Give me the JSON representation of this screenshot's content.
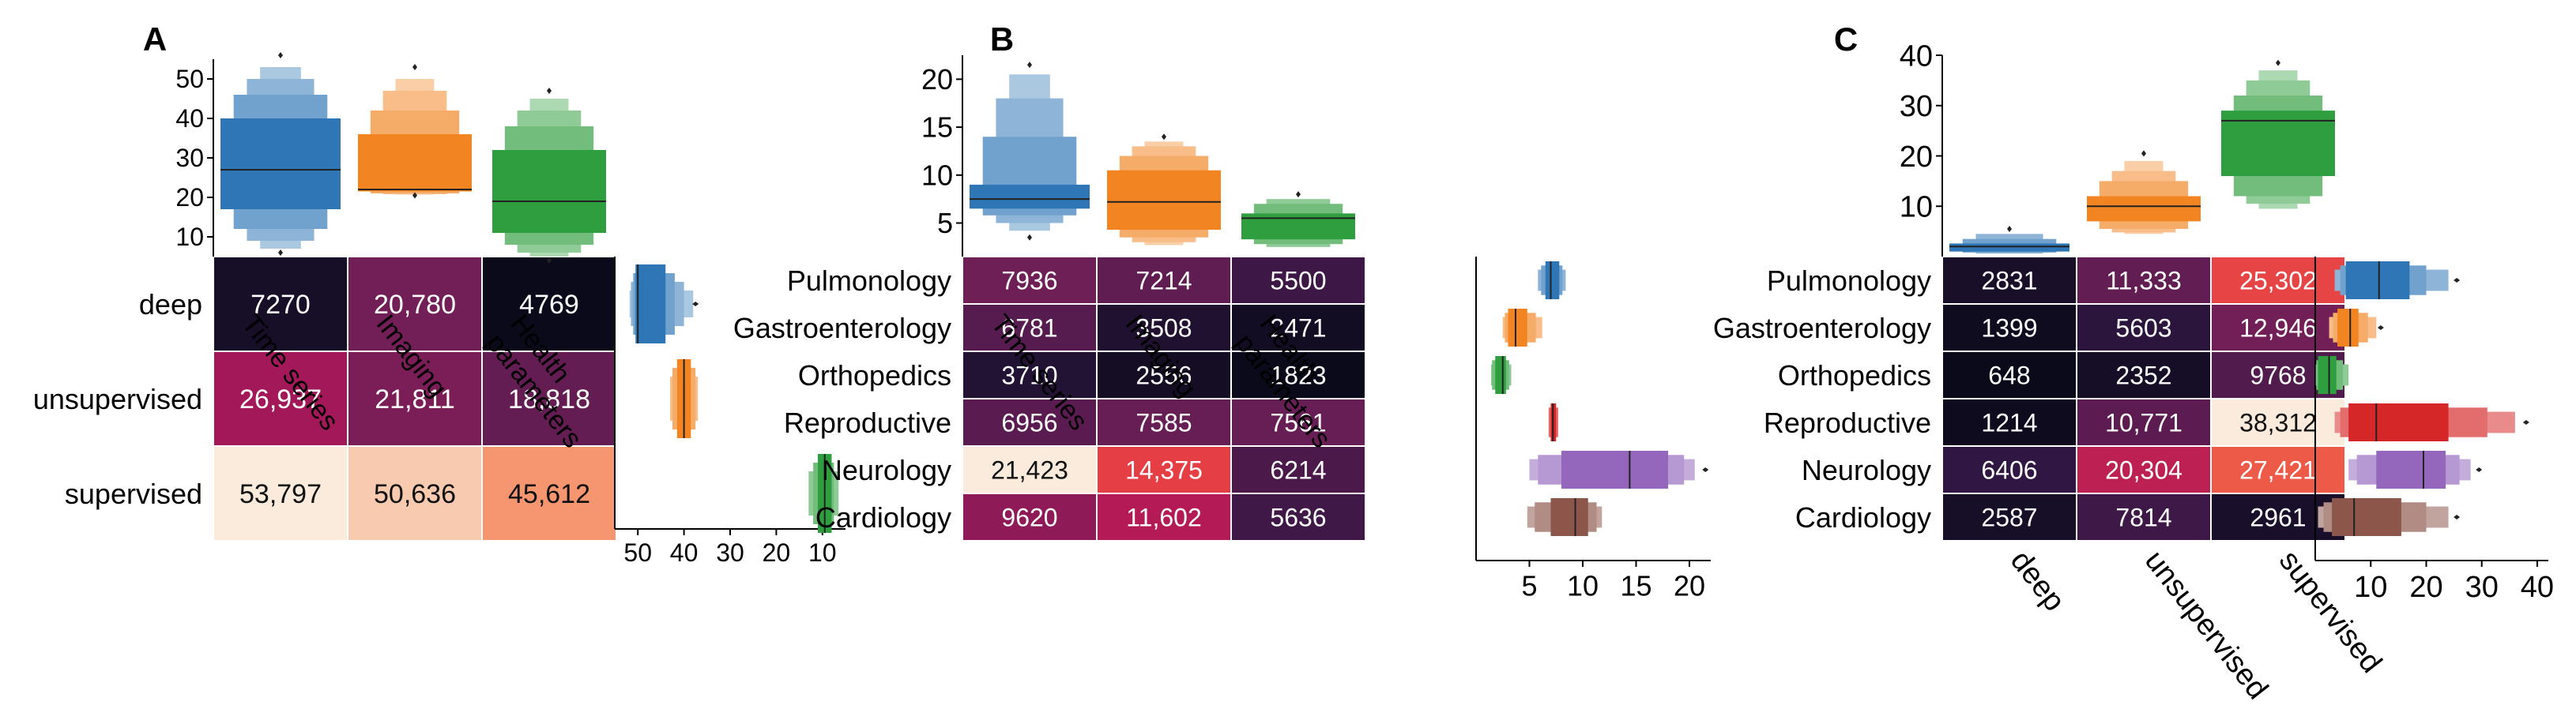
{
  "figure": {
    "panel_labels": [
      "A",
      "B",
      "C"
    ]
  },
  "chart_data": [
    {
      "type": "heatmap",
      "panel": "A",
      "rows": [
        "deep",
        "unsupervised",
        "supervised"
      ],
      "cols": [
        "Time series",
        "Imaging",
        "Health parameters"
      ],
      "values": [
        [
          7270,
          20780,
          4769
        ],
        [
          26937,
          21811,
          18818
        ],
        [
          53797,
          50636,
          45612
        ]
      ],
      "labels": [
        [
          "7270",
          "20,780",
          "4769"
        ],
        [
          "26,937",
          "21,811",
          "18,818"
        ],
        [
          "53,797",
          "50,636",
          "45,612"
        ]
      ],
      "top_boxen": {
        "axis_range": [
          5,
          55
        ],
        "ticks": [
          10,
          20,
          30,
          40,
          50
        ],
        "series": [
          {
            "name": "Time series",
            "color": "#2e76b5",
            "median": 27,
            "levels": [
              [
                17,
                40
              ],
              [
                12,
                46
              ],
              [
                9,
                50
              ],
              [
                7,
                53
              ]
            ],
            "outliers": [
              6,
              56
            ]
          },
          {
            "name": "Imaging",
            "color": "#f28522",
            "median": 22,
            "levels": [
              [
                21.5,
                36
              ],
              [
                21,
                42
              ],
              [
                20.8,
                47
              ],
              [
                20.7,
                50
              ]
            ],
            "outliers": [
              20.5,
              53
            ]
          },
          {
            "name": "Health parameters",
            "color": "#2f9e3f",
            "median": 19,
            "levels": [
              [
                11,
                32
              ],
              [
                8,
                38
              ],
              [
                6,
                42
              ],
              [
                5,
                45
              ]
            ],
            "outliers": [
              4,
              47
            ]
          }
        ]
      },
      "side_boxen": {
        "axis_range": [
          55,
          5
        ],
        "ticks": [
          50,
          40,
          30,
          20,
          10
        ],
        "series": [
          {
            "name": "deep",
            "color": "#2e76b5",
            "median": 50,
            "levels": [
              [
                44,
                50.5
              ],
              [
                42,
                51
              ],
              [
                40,
                51.5
              ],
              [
                38,
                51.8
              ]
            ],
            "outliers": [
              37.5
            ]
          },
          {
            "name": "unsupervised",
            "color": "#f28522",
            "median": 40,
            "levels": [
              [
                38.5,
                41.5
              ],
              [
                37.5,
                42.5
              ],
              [
                37,
                43
              ]
            ],
            "outliers": []
          },
          {
            "name": "supervised",
            "color": "#2f9e3f",
            "median": 9.5,
            "levels": [
              [
                8,
                11
              ],
              [
                7.5,
                12
              ],
              [
                6.5,
                13
              ]
            ],
            "outliers": []
          }
        ]
      }
    },
    {
      "type": "heatmap",
      "panel": "B",
      "rows": [
        "Pulmonology",
        "Gastroenterology",
        "Orthopedics",
        "Reproductive",
        "Neurology",
        "Cardiology"
      ],
      "cols": [
        "Time series",
        "Imaging",
        "Health parameters"
      ],
      "values": [
        [
          7936,
          7214,
          5500
        ],
        [
          6781,
          3508,
          2471
        ],
        [
          3710,
          2556,
          1823
        ],
        [
          6956,
          7585,
          7561
        ],
        [
          21423,
          14375,
          6214
        ],
        [
          9620,
          11602,
          5636
        ]
      ],
      "labels": [
        [
          "7936",
          "7214",
          "5500"
        ],
        [
          "6781",
          "3508",
          "2471"
        ],
        [
          "3710",
          "2556",
          "1823"
        ],
        [
          "6956",
          "7585",
          "7561"
        ],
        [
          "21,423",
          "14,375",
          "6214"
        ],
        [
          "9620",
          "11,602",
          "5636"
        ]
      ],
      "top_boxen": {
        "axis_range": [
          1.5,
          22.5
        ],
        "ticks": [
          5,
          10,
          15,
          20
        ],
        "series": [
          {
            "name": "Time series",
            "color": "#2e76b5",
            "median": 7.5,
            "levels": [
              [
                6.5,
                9
              ],
              [
                5.8,
                14
              ],
              [
                5,
                18
              ],
              [
                4.2,
                20.5
              ]
            ],
            "outliers": [
              3.5,
              21.5
            ]
          },
          {
            "name": "Imaging",
            "color": "#f28522",
            "median": 7.2,
            "levels": [
              [
                4.3,
                10.5
              ],
              [
                3.5,
                12
              ],
              [
                3,
                13
              ],
              [
                2.7,
                13.5
              ]
            ],
            "outliers": [
              14
            ]
          },
          {
            "name": "Health parameters",
            "color": "#2f9e3f",
            "median": 5.5,
            "levels": [
              [
                3.3,
                6
              ],
              [
                2.8,
                7
              ],
              [
                2.5,
                7.5
              ]
            ],
            "outliers": [
              8
            ]
          }
        ]
      },
      "side_boxen": {
        "axis_range": [
          0,
          22
        ],
        "ticks": [
          5,
          10,
          15,
          20
        ],
        "series": [
          {
            "name": "Pulmonology",
            "color": "#2e76b5",
            "median": 7,
            "levels": [
              [
                6.5,
                7.8
              ],
              [
                6.1,
                8.1
              ],
              [
                5.8,
                8.4
              ]
            ],
            "outliers": []
          },
          {
            "name": "Gastroenterology",
            "color": "#f28522",
            "median": 3.7,
            "levels": [
              [
                3,
                4.8
              ],
              [
                2.7,
                5.6
              ],
              [
                2.5,
                6.2
              ]
            ],
            "outliers": []
          },
          {
            "name": "Orthopedics",
            "color": "#2f9e3f",
            "median": 2.5,
            "levels": [
              [
                1.8,
                2.8
              ],
              [
                1.5,
                3.1
              ],
              [
                1.4,
                3.3
              ]
            ],
            "outliers": []
          },
          {
            "name": "Reproductive",
            "color": "#d62728",
            "median": 7.2,
            "levels": [
              [
                7,
                7.5
              ],
              [
                6.8,
                7.7
              ]
            ],
            "outliers": []
          },
          {
            "name": "Neurology",
            "color": "#9467bd",
            "median": 14.4,
            "levels": [
              [
                8,
                18
              ],
              [
                5.8,
                19.5
              ],
              [
                5,
                20.5
              ]
            ],
            "outliers": [
              21.5
            ]
          },
          {
            "name": "Cardiology",
            "color": "#8c564b",
            "median": 9.3,
            "levels": [
              [
                7,
                10.5
              ],
              [
                5.5,
                11.3
              ],
              [
                4.8,
                11.8
              ]
            ],
            "outliers": []
          }
        ]
      }
    },
    {
      "type": "heatmap",
      "panel": "C",
      "rows": [
        "Pulmonology",
        "Gastroenterology",
        "Orthopedics",
        "Reproductive",
        "Neurology",
        "Cardiology"
      ],
      "cols": [
        "deep",
        "unsupervised",
        "supervised"
      ],
      "values": [
        [
          2831,
          11333,
          25302
        ],
        [
          1399,
          5603,
          12946
        ],
        [
          648,
          2352,
          9768
        ],
        [
          1214,
          10771,
          38312
        ],
        [
          6406,
          20304,
          27421
        ],
        [
          2587,
          7814,
          2961
        ]
      ],
      "labels": [
        [
          "2831",
          "11,333",
          "25,302"
        ],
        [
          "1399",
          "5603",
          "12,946"
        ],
        [
          "648",
          "2352",
          "9768"
        ],
        [
          "1214",
          "10,771",
          "38,312"
        ],
        [
          "6406",
          "20,304",
          "27,421"
        ],
        [
          "2587",
          "7814",
          "2961"
        ]
      ],
      "top_boxen": {
        "axis_range": [
          0,
          40
        ],
        "ticks": [
          10,
          20,
          30,
          40
        ],
        "series": [
          {
            "name": "deep",
            "color": "#2e76b5",
            "median": 2,
            "levels": [
              [
                1,
                2.6
              ],
              [
                0.8,
                3.5
              ],
              [
                0.6,
                4.5
              ]
            ],
            "outliers": [
              5.5
            ]
          },
          {
            "name": "unsupervised",
            "color": "#f28522",
            "median": 10,
            "levels": [
              [
                7,
                12
              ],
              [
                5.5,
                15
              ],
              [
                4.8,
                17
              ],
              [
                4.5,
                19
              ]
            ],
            "outliers": [
              20.5
            ]
          },
          {
            "name": "supervised",
            "color": "#2f9e3f",
            "median": 27,
            "levels": [
              [
                16,
                29
              ],
              [
                12,
                32
              ],
              [
                10.5,
                35
              ],
              [
                9.5,
                37
              ]
            ],
            "outliers": [
              38.5
            ]
          }
        ]
      },
      "side_boxen": {
        "axis_range": [
          0,
          42
        ],
        "ticks": [
          10,
          20,
          30,
          40
        ],
        "series": [
          {
            "name": "Pulmonology",
            "color": "#2e76b5",
            "median": 11.5,
            "levels": [
              [
                5.5,
                17
              ],
              [
                4.5,
                20
              ],
              [
                3.5,
                24
              ]
            ],
            "outliers": [
              25.5
            ]
          },
          {
            "name": "Gastroenterology",
            "color": "#f28522",
            "median": 6.3,
            "levels": [
              [
                4,
                7.8
              ],
              [
                3.2,
                9.5
              ],
              [
                2.5,
                11
              ]
            ],
            "outliers": [
              11.8
            ]
          },
          {
            "name": "Orthopedics",
            "color": "#2f9e3f",
            "median": 2.5,
            "levels": [
              [
                0.5,
                3.8
              ],
              [
                0.2,
                5
              ],
              [
                0.1,
                6
              ]
            ],
            "outliers": []
          },
          {
            "name": "Reproductive",
            "color": "#d62728",
            "median": 11,
            "levels": [
              [
                6,
                24
              ],
              [
                4.5,
                31
              ],
              [
                3.5,
                36
              ]
            ],
            "outliers": [
              38
            ]
          },
          {
            "name": "Neurology",
            "color": "#9467bd",
            "median": 19.5,
            "levels": [
              [
                11,
                23.5
              ],
              [
                7.5,
                26
              ],
              [
                6,
                28
              ]
            ],
            "outliers": [
              29.5
            ]
          },
          {
            "name": "Cardiology",
            "color": "#8c564b",
            "median": 7,
            "levels": [
              [
                3,
                15.5
              ],
              [
                1.5,
                20
              ],
              [
                0.5,
                24
              ]
            ],
            "outliers": [
              25.5
            ]
          }
        ]
      }
    }
  ]
}
